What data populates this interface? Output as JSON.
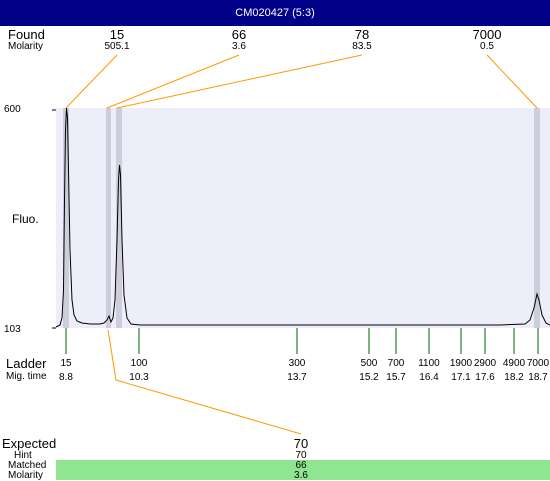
{
  "title": "CM020427 (5:3)",
  "left_labels": {
    "found": "Found",
    "molarity": "Molarity",
    "fluo": "Fluo.",
    "ladder": "Ladder",
    "mig_time": "Mig. time",
    "expected": "Expected",
    "hint": "Hint",
    "matched": "Matched",
    "molarity_bottom": "Molarity"
  },
  "y_axis": {
    "top": "600",
    "bottom": "103"
  },
  "found_peaks": [
    {
      "size": "15",
      "molarity": "505.1"
    },
    {
      "size": "66",
      "molarity": "3.6"
    },
    {
      "size": "78",
      "molarity": "83.5"
    },
    {
      "size": "7000",
      "molarity": "0.5"
    }
  ],
  "ladder": [
    {
      "size": "15",
      "time": "8.8"
    },
    {
      "size": "100",
      "time": "10.3"
    },
    {
      "size": "300",
      "time": "13.7"
    },
    {
      "size": "500",
      "time": "15.2"
    },
    {
      "size": "700",
      "time": "15.7"
    },
    {
      "size": "1100",
      "time": "16.4"
    },
    {
      "size": "1900",
      "time": "17.1"
    },
    {
      "size": "2900",
      "time": "17.6"
    },
    {
      "size": "4900",
      "time": "18.2"
    },
    {
      "size": "7000",
      "time": "18.7"
    }
  ],
  "expected": {
    "value": "70",
    "hint": "70",
    "matched": "66",
    "molarity": "3.6"
  },
  "colors": {
    "title_bg": "#000088",
    "plot_bg": "#eeeefa",
    "ladder_tick": "#006600",
    "leader_line": "#ff9900",
    "matched_bar": "#90e690"
  }
}
